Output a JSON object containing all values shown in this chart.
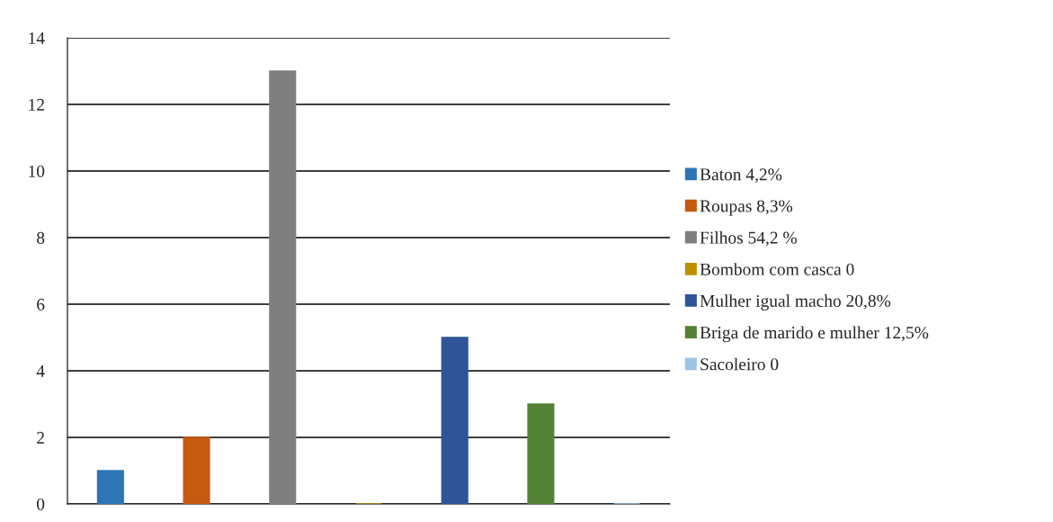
{
  "chart_data": {
    "type": "bar",
    "categories": [
      null,
      null,
      null,
      null,
      null,
      null,
      null
    ],
    "series": [
      {
        "name": "Baton 4,2%",
        "color": "#2e75b6",
        "values": [
          1,
          null,
          null,
          null,
          null,
          null,
          null
        ]
      },
      {
        "name": "Roupas 8,3%",
        "color": "#c55a11",
        "values": [
          null,
          2,
          null,
          null,
          null,
          null,
          null
        ]
      },
      {
        "name": "Filhos 54,2 %",
        "color": "#7f7f7f",
        "values": [
          null,
          null,
          13,
          null,
          null,
          null,
          null
        ]
      },
      {
        "name": "Bombom com casca 0",
        "color": "#bf9000",
        "values": [
          null,
          null,
          null,
          0,
          null,
          null,
          null
        ]
      },
      {
        "name": "Mulher igual macho 20,8%",
        "color": "#2f5597",
        "values": [
          null,
          null,
          null,
          null,
          5,
          null,
          null
        ]
      },
      {
        "name": "Briga de marido e mulher 12,5%",
        "color": "#548235",
        "values": [
          null,
          null,
          null,
          null,
          null,
          3,
          null
        ]
      },
      {
        "name": "Sacoleiro 0",
        "color": "#9dc3e6",
        "values": [
          null,
          null,
          null,
          null,
          null,
          null,
          0
        ]
      }
    ],
    "ylim": [
      0,
      14
    ],
    "yticks": [
      0,
      2,
      4,
      6,
      8,
      10,
      12,
      14
    ],
    "grid": "y",
    "legend": "right"
  }
}
